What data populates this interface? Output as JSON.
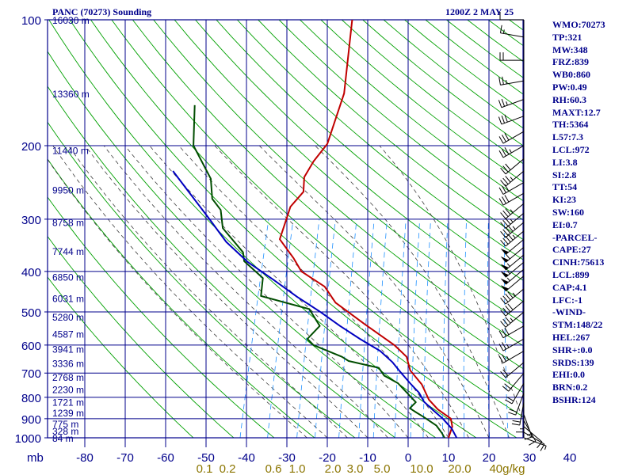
{
  "header": {
    "title": "PANC (70273) Sounding",
    "time": "1200Z  2 MAY 25"
  },
  "colors": {
    "grid": "#00008b",
    "dry_adiabat": "#00a000",
    "moist_adiabat": "#3c3c3c",
    "mixing_ratio": "#1e90ff",
    "temperature": "#c00000",
    "dewpoint": "#004d00",
    "parcel": "#0000c0",
    "mixing_label": "#8b7500",
    "text": "#00008b"
  },
  "chart_data": {
    "type": "line",
    "y_unit_label": "mb",
    "pressure_levels": [
      100,
      200,
      300,
      400,
      500,
      600,
      700,
      800,
      900,
      1000
    ],
    "temperature_ticks": [
      -80,
      -70,
      -60,
      -50,
      -40,
      -30,
      -20,
      -10,
      0,
      10,
      20,
      30,
      40
    ],
    "mixing_ratio_ticks": [
      "0.1",
      "0.2",
      "0.6",
      "1.0",
      "2.0",
      "3.0",
      "5.0",
      "10.0",
      "20.0",
      "40g/kg"
    ],
    "heights": [
      {
        "p": 1000,
        "label": "84 m"
      },
      {
        "p": 962,
        "label": "328 m"
      },
      {
        "p": 925,
        "label": "775 m"
      },
      {
        "p": 870,
        "label": "1239 m"
      },
      {
        "p": 820,
        "label": "1721 m"
      },
      {
        "p": 765,
        "label": "2230 m"
      },
      {
        "p": 715,
        "label": "2768 m"
      },
      {
        "p": 662,
        "label": "3336 m"
      },
      {
        "p": 612,
        "label": "3941 m"
      },
      {
        "p": 563,
        "label": "4587 m"
      },
      {
        "p": 513,
        "label": "5280 m"
      },
      {
        "p": 463,
        "label": "6031 m"
      },
      {
        "p": 412,
        "label": "6850 m"
      },
      {
        "p": 357,
        "label": "7744 m"
      },
      {
        "p": 305,
        "label": "8758 m"
      },
      {
        "p": 255,
        "label": "9950 m"
      },
      {
        "p": 205,
        "label": "11440 m"
      },
      {
        "p": 150,
        "label": "13360 m"
      },
      {
        "p": 100,
        "label": "16030 m"
      }
    ],
    "series": [
      {
        "key": "temperature",
        "points": [
          [
            100,
            -48
          ],
          [
            150,
            -44
          ],
          [
            198,
            -44
          ],
          [
            218,
            -46
          ],
          [
            238,
            -47
          ],
          [
            258,
            -46
          ],
          [
            280,
            -48
          ],
          [
            305,
            -48
          ],
          [
            335,
            -48
          ],
          [
            372,
            -43
          ],
          [
            400,
            -40
          ],
          [
            435,
            -33
          ],
          [
            475,
            -29
          ],
          [
            535,
            -20
          ],
          [
            600,
            -11
          ],
          [
            640,
            -7
          ],
          [
            690,
            -5
          ],
          [
            745,
            -1
          ],
          [
            810,
            2
          ],
          [
            855,
            5
          ],
          [
            900,
            9
          ],
          [
            940,
            10
          ],
          [
            980,
            10
          ],
          [
            1000,
            10
          ]
        ]
      },
      {
        "key": "dewpoint",
        "points": [
          [
            160,
            -80
          ],
          [
            200,
            -77
          ],
          [
            240,
            -70
          ],
          [
            268,
            -68
          ],
          [
            285,
            -65
          ],
          [
            315,
            -63
          ],
          [
            360,
            -56
          ],
          [
            378,
            -55
          ],
          [
            415,
            -49
          ],
          [
            458,
            -48
          ],
          [
            492,
            -35
          ],
          [
            540,
            -31
          ],
          [
            580,
            -33
          ],
          [
            600,
            -31
          ],
          [
            640,
            -23
          ],
          [
            655,
            -21
          ],
          [
            680,
            -13
          ],
          [
            710,
            -11
          ],
          [
            740,
            -7
          ],
          [
            780,
            -4
          ],
          [
            822,
            -1
          ],
          [
            850,
            -2
          ],
          [
            870,
            0
          ],
          [
            890,
            2
          ],
          [
            935,
            6
          ],
          [
            975,
            8
          ],
          [
            1000,
            9
          ]
        ]
      },
      {
        "key": "parcel",
        "points": [
          [
            230,
            -80
          ],
          [
            260,
            -74
          ],
          [
            300,
            -67
          ],
          [
            340,
            -61
          ],
          [
            380,
            -54
          ],
          [
            420,
            -46
          ],
          [
            460,
            -39
          ],
          [
            500,
            -32
          ],
          [
            540,
            -26
          ],
          [
            580,
            -20
          ],
          [
            620,
            -14
          ],
          [
            660,
            -10
          ],
          [
            700,
            -7
          ],
          [
            740,
            -4
          ],
          [
            780,
            -1
          ],
          [
            820,
            1
          ],
          [
            860,
            4
          ],
          [
            900,
            7
          ],
          [
            950,
            10
          ],
          [
            1000,
            12
          ]
        ]
      }
    ],
    "wind_barbs": [
      {
        "p": 100,
        "dir": 270,
        "spd": 10
      },
      {
        "p": 110,
        "dir": 280,
        "spd": 15
      },
      {
        "p": 125,
        "dir": 270,
        "spd": 20
      },
      {
        "p": 140,
        "dir": 260,
        "spd": 25
      },
      {
        "p": 155,
        "dir": 250,
        "spd": 25
      },
      {
        "p": 170,
        "dir": 250,
        "spd": 30
      },
      {
        "p": 185,
        "dir": 240,
        "spd": 30
      },
      {
        "p": 200,
        "dir": 240,
        "spd": 35
      },
      {
        "p": 215,
        "dir": 230,
        "spd": 30
      },
      {
        "p": 230,
        "dir": 230,
        "spd": 35
      },
      {
        "p": 245,
        "dir": 240,
        "spd": 30
      },
      {
        "p": 260,
        "dir": 240,
        "spd": 30
      },
      {
        "p": 275,
        "dir": 230,
        "spd": 35
      },
      {
        "p": 290,
        "dir": 230,
        "spd": 35
      },
      {
        "p": 305,
        "dir": 230,
        "spd": 45
      },
      {
        "p": 320,
        "dir": 230,
        "spd": 45
      },
      {
        "p": 335,
        "dir": 230,
        "spd": 50
      },
      {
        "p": 350,
        "dir": 230,
        "spd": 60
      },
      {
        "p": 365,
        "dir": 230,
        "spd": 55
      },
      {
        "p": 380,
        "dir": 230,
        "spd": 55
      },
      {
        "p": 395,
        "dir": 230,
        "spd": 55
      },
      {
        "p": 410,
        "dir": 230,
        "spd": 50
      },
      {
        "p": 440,
        "dir": 230,
        "spd": 45
      },
      {
        "p": 470,
        "dir": 230,
        "spd": 40
      },
      {
        "p": 500,
        "dir": 230,
        "spd": 35
      },
      {
        "p": 540,
        "dir": 240,
        "spd": 30
      },
      {
        "p": 580,
        "dir": 240,
        "spd": 25
      },
      {
        "p": 620,
        "dir": 240,
        "spd": 25
      },
      {
        "p": 660,
        "dir": 230,
        "spd": 20
      },
      {
        "p": 700,
        "dir": 220,
        "spd": 20
      },
      {
        "p": 740,
        "dir": 210,
        "spd": 20
      },
      {
        "p": 780,
        "dir": 200,
        "spd": 20
      },
      {
        "p": 820,
        "dir": 190,
        "spd": 20
      },
      {
        "p": 850,
        "dir": 180,
        "spd": 15
      },
      {
        "p": 880,
        "dir": 160,
        "spd": 15
      },
      {
        "p": 910,
        "dir": 150,
        "spd": 10
      },
      {
        "p": 940,
        "dir": 130,
        "spd": 10
      },
      {
        "p": 970,
        "dir": 120,
        "spd": 10
      },
      {
        "p": 1000,
        "dir": 110,
        "spd": 5
      }
    ]
  },
  "indices": [
    "WMO:70273",
    "TP:321",
    "MW:348",
    "FRZ:839",
    "WB0:860",
    "PW:0.49",
    "RH:60.3",
    "MAXT:12.7",
    "TH:5364",
    "L57:7.3",
    "LCL:972",
    "LI:3.8",
    "SI:2.8",
    "TT:54",
    "KI:23",
    "SW:160",
    "EI:0.7",
    "-PARCEL-",
    "CAPE:27",
    "CINH:75613",
    "LCL:899",
    "CAP:4.1",
    "LFC:-1",
    "-WIND-",
    "STM:148/22",
    "HEL:267",
    "SHR+:0.0",
    "SRDS:139",
    "EHI:0.0",
    "BRN:0.2",
    "BSHR:124"
  ]
}
